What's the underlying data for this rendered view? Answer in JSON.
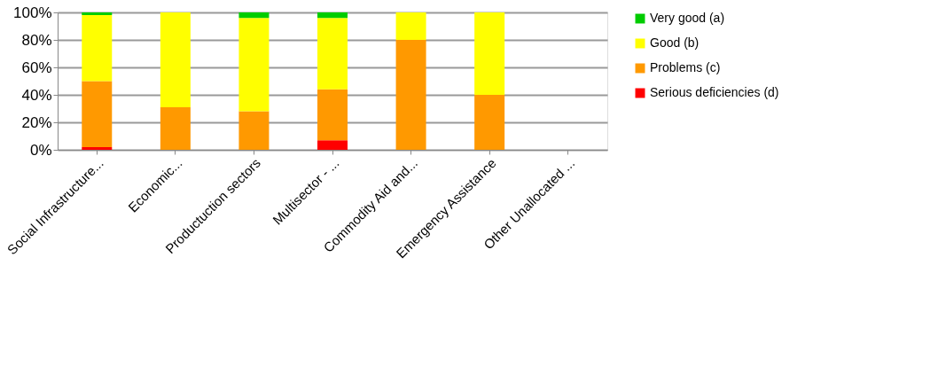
{
  "chart_data": {
    "type": "bar",
    "stacked": true,
    "categories": [
      "Social Infrastructure...",
      "Economic...",
      "Productuction sectors",
      "Multisector - ...",
      "Commodity Aid and...",
      "Emergency Assistance",
      "Other Unallocated ..."
    ],
    "series": [
      {
        "name": "Serious deficiencies (d)",
        "color": "#ff0000",
        "values": [
          2,
          0,
          0,
          7,
          0,
          0,
          0
        ]
      },
      {
        "name": "Problems (c)",
        "color": "#ff9900",
        "values": [
          48,
          31,
          28,
          37,
          80,
          40,
          0
        ]
      },
      {
        "name": "Good (b)",
        "color": "#ffff00",
        "values": [
          48,
          69,
          68,
          52,
          20,
          60,
          0
        ]
      },
      {
        "name": "Very good (a)",
        "color": "#00cc00",
        "values": [
          2,
          0,
          4,
          4,
          0,
          0,
          0
        ]
      }
    ],
    "ylim": [
      0,
      100
    ],
    "yticks": [
      {
        "value": 0,
        "label": "0%"
      },
      {
        "value": 20,
        "label": "20%"
      },
      {
        "value": 40,
        "label": "40%"
      },
      {
        "value": 60,
        "label": "60%"
      },
      {
        "value": 80,
        "label": "80%"
      },
      {
        "value": 100,
        "label": "100%"
      }
    ],
    "grid": "y",
    "legend": "right"
  }
}
